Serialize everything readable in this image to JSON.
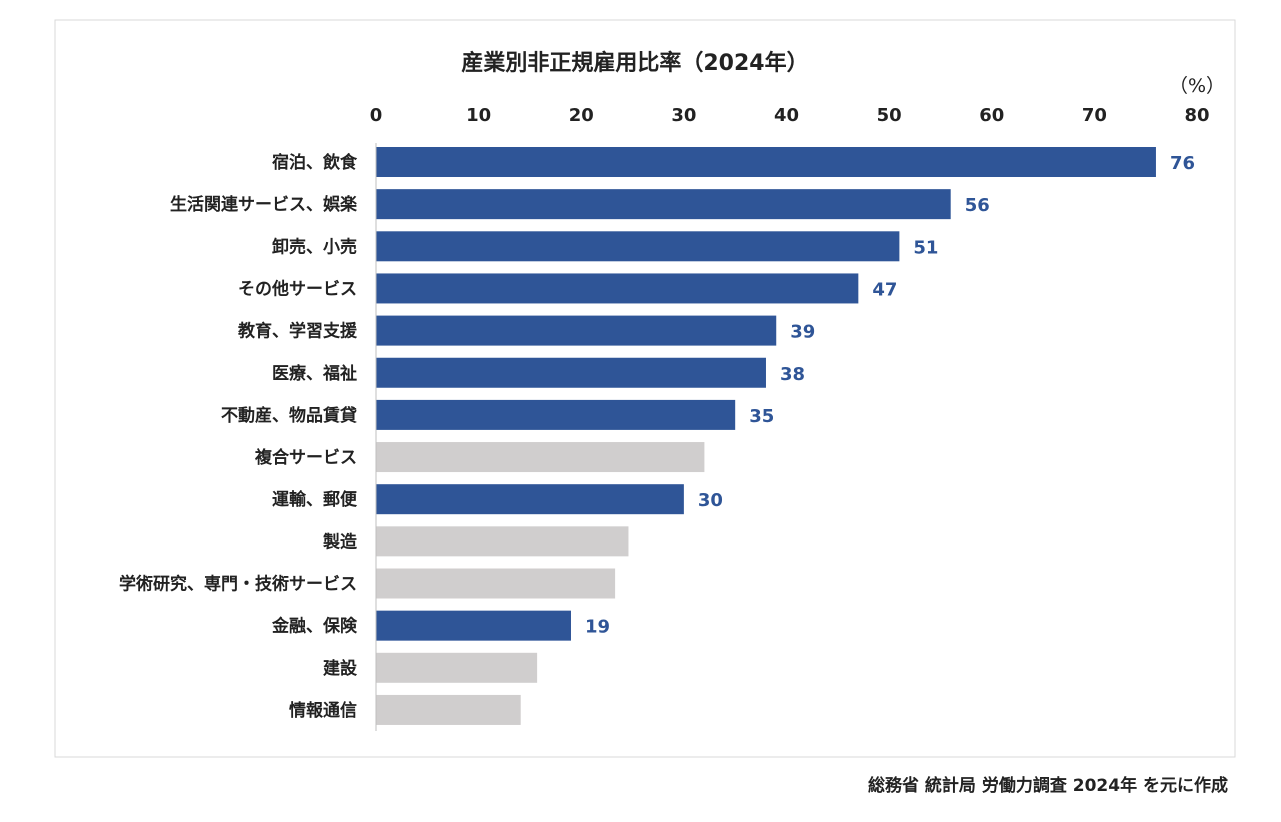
{
  "chart_data": {
    "type": "bar",
    "orientation": "horizontal",
    "title": "産業別非正規雇用比率（2024年）",
    "unit_label": "（%）",
    "xlim": [
      0,
      80
    ],
    "xticks": [
      0,
      10,
      20,
      30,
      40,
      50,
      60,
      70,
      80
    ],
    "grid": false,
    "categories": [
      "宿泊、飲食",
      "生活関連サービス、娯楽",
      "卸売、小売",
      "その他サービス",
      "教育、学習支援",
      "医療、福祉",
      "不動産、物品賃貸",
      "複合サービス",
      "運輸、郵便",
      "製造",
      "学術研究、専門・技術サービス",
      "金融、保険",
      "建設",
      "情報通信"
    ],
    "values": [
      76,
      56,
      51,
      47,
      39,
      38,
      35,
      32,
      30,
      24.6,
      23.3,
      19,
      15.7,
      14.1
    ],
    "data_labels": [
      "76",
      "56",
      "51",
      "47",
      "39",
      "38",
      "35",
      "",
      "30",
      "",
      "",
      "19",
      "",
      ""
    ],
    "highlighted": [
      true,
      true,
      true,
      true,
      true,
      true,
      true,
      false,
      true,
      false,
      false,
      true,
      false,
      false
    ],
    "colors": {
      "highlight": "#2F5597",
      "other": "#D0CECE",
      "label": "#2F5597"
    }
  },
  "source_note": "総務省 統計局 労働力調査 2024年 を元に作成"
}
